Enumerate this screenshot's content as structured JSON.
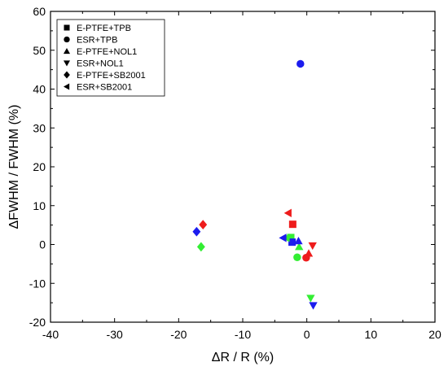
{
  "chart_data": {
    "type": "scatter",
    "xlabel": "ΔR / R (%)",
    "ylabel": "ΔFWHM / FWHM (%)",
    "xlim": [
      -40,
      20
    ],
    "ylim": [
      -20,
      60
    ],
    "x_ticks": [
      "-40",
      "-30",
      "-20",
      "-10",
      "0",
      "10",
      "20"
    ],
    "y_ticks": [
      "-20",
      "-10",
      "0",
      "10",
      "20",
      "30",
      "40",
      "50",
      "60"
    ],
    "grid": false,
    "legend": {
      "position": "top-left",
      "entries": [
        {
          "label": "E-PTFE+TPB",
          "marker": "square"
        },
        {
          "label": "ESR+TPB",
          "marker": "circle"
        },
        {
          "label": "E-PTFE+NOL1",
          "marker": "triangle-up"
        },
        {
          "label": "ESR+NOL1",
          "marker": "triangle-down"
        },
        {
          "label": "E-PTFE+SB2001",
          "marker": "diamond"
        },
        {
          "label": "ESR+SB2001",
          "marker": "triangle-left"
        }
      ]
    },
    "colors": {
      "red": "#ee1c1c",
      "green": "#33ee33",
      "blue": "#1c1cee"
    },
    "points": [
      {
        "series": "E-PTFE+TPB",
        "marker": "square",
        "color": "red",
        "x": -2.2,
        "y": 5.2
      },
      {
        "series": "E-PTFE+TPB",
        "marker": "square",
        "color": "green",
        "x": -2.5,
        "y": 1.8
      },
      {
        "series": "E-PTFE+TPB",
        "marker": "square",
        "color": "blue",
        "x": -2.3,
        "y": 0.6
      },
      {
        "series": "ESR+TPB",
        "marker": "circle",
        "color": "blue",
        "x": -1.0,
        "y": 46.5
      },
      {
        "series": "ESR+TPB",
        "marker": "circle",
        "color": "red",
        "x": -0.1,
        "y": -3.4
      },
      {
        "series": "ESR+TPB",
        "marker": "circle",
        "color": "green",
        "x": -1.5,
        "y": -3.3
      },
      {
        "series": "E-PTFE+NOL1",
        "marker": "triangle-up",
        "color": "red",
        "x": 0.3,
        "y": -2.3
      },
      {
        "series": "E-PTFE+NOL1",
        "marker": "triangle-up",
        "color": "green",
        "x": -1.2,
        "y": -0.6
      },
      {
        "series": "E-PTFE+NOL1",
        "marker": "triangle-up",
        "color": "blue",
        "x": -1.3,
        "y": 0.9
      },
      {
        "series": "ESR+NOL1",
        "marker": "triangle-down",
        "color": "red",
        "x": 0.9,
        "y": -0.3
      },
      {
        "series": "ESR+NOL1",
        "marker": "triangle-down",
        "color": "green",
        "x": 0.6,
        "y": -13.8
      },
      {
        "series": "ESR+NOL1",
        "marker": "triangle-down",
        "color": "blue",
        "x": 1.0,
        "y": -15.7
      },
      {
        "series": "E-PTFE+SB2001",
        "marker": "diamond",
        "color": "red",
        "x": -16.2,
        "y": 5.1
      },
      {
        "series": "E-PTFE+SB2001",
        "marker": "diamond",
        "color": "green",
        "x": -16.5,
        "y": -0.6
      },
      {
        "series": "E-PTFE+SB2001",
        "marker": "diamond",
        "color": "blue",
        "x": -17.2,
        "y": 3.3
      },
      {
        "series": "ESR+SB2001",
        "marker": "triangle-left",
        "color": "red",
        "x": -2.9,
        "y": 8.1
      },
      {
        "series": "ESR+SB2001",
        "marker": "triangle-left",
        "color": "green",
        "x": -3.2,
        "y": 1.7
      },
      {
        "series": "ESR+SB2001",
        "marker": "triangle-left",
        "color": "blue",
        "x": -3.7,
        "y": 1.7
      }
    ]
  }
}
